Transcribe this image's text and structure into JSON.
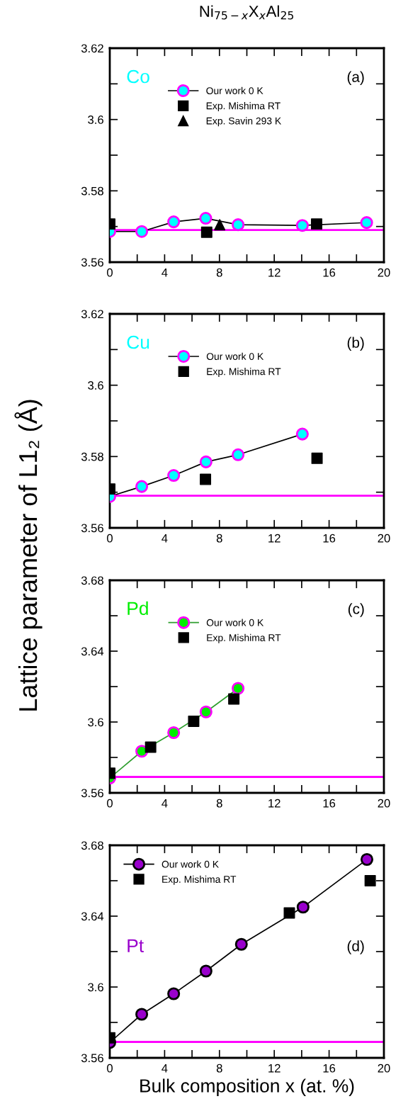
{
  "chart_data": [
    {
      "type": "line",
      "title": "Ni$_{75−x}$X$_{x}$Al$_{25}$",
      "ylabel": "Lattice parameter of L1₂ (Å)",
      "annotations": [
        "Co",
        "(a)"
      ],
      "legend": "top",
      "grid": false,
      "xlim": [
        0,
        20
      ],
      "xticks": [
        0,
        {
          "value": 2,
          "label": null
        },
        4,
        {
          "value": 6,
          "label": null
        },
        8,
        {
          "value": 10,
          "label": null
        },
        12,
        {
          "value": 14,
          "label": null
        },
        16,
        {
          "value": 18,
          "label": null
        },
        20
      ],
      "ylim": [
        3.56,
        3.62
      ],
      "yticks": [
        3.56,
        {
          "value": 3.57,
          "label": null
        },
        3.58,
        {
          "value": 3.59,
          "label": null
        },
        3.6,
        {
          "value": 3.61,
          "label": null
        },
        3.62
      ],
      "ref_lines": [
        {
          "axis": "y",
          "value": 3.569,
          "color": "#ff00ff"
        }
      ],
      "series": [
        {
          "name": "Our work 0 K",
          "marker": "circle",
          "color": "#00ffff",
          "x": [
            0,
            2.33,
            4.66,
            7.0,
            9.36,
            14.05,
            18.74
          ],
          "values": [
            3.5686,
            3.5686,
            3.5713,
            3.5723,
            3.5705,
            3.5703,
            3.5711
          ]
        },
        {
          "name": "Exp. Mishima RT",
          "type": "scatter",
          "marker": "square",
          "color": "#000000",
          "x": [
            0,
            7.07,
            15.09
          ],
          "values": [
            3.5707,
            3.5684,
            3.5707
          ]
        },
        {
          "name": "Exp. Savin 293 K",
          "type": "scatter",
          "marker": "triangle",
          "color": "#000000",
          "x": [
            8.02
          ],
          "values": [
            3.5705
          ]
        }
      ]
    },
    {
      "type": "line",
      "annotations": [
        "Cu",
        "(b)"
      ],
      "legend": "top",
      "grid": false,
      "xlim": [
        0,
        20
      ],
      "xticks": [
        0,
        {
          "value": 2,
          "label": null
        },
        4,
        {
          "value": 6,
          "label": null
        },
        8,
        {
          "value": 10,
          "label": null
        },
        12,
        {
          "value": 14,
          "label": null
        },
        16,
        {
          "value": 18,
          "label": null
        },
        20
      ],
      "ylim": [
        3.56,
        3.62
      ],
      "yticks": [
        3.56,
        {
          "value": 3.57,
          "label": null
        },
        3.58,
        {
          "value": 3.59,
          "label": null
        },
        3.6,
        {
          "value": 3.61,
          "label": null
        },
        3.62
      ],
      "ref_lines": [
        {
          "axis": "y",
          "value": 3.569,
          "color": "#ff00ff"
        }
      ],
      "series": [
        {
          "name": "Our work 0 K",
          "marker": "circle",
          "color": "#00ffff",
          "x": [
            0,
            2.33,
            4.66,
            7.02,
            9.36,
            14.05
          ],
          "values": [
            3.5688,
            3.5716,
            3.5747,
            3.5785,
            3.5805,
            3.5863
          ]
        },
        {
          "name": "Exp. Mishima RT",
          "type": "scatter",
          "marker": "square",
          "color": "#000000",
          "x": [
            0,
            6.98,
            15.12
          ],
          "values": [
            3.5709,
            3.5736,
            3.5795
          ]
        }
      ]
    },
    {
      "type": "line",
      "annotations": [
        "Pd",
        "(c)"
      ],
      "legend": "top",
      "grid": false,
      "xlim": [
        0,
        20
      ],
      "xticks": [
        0,
        {
          "value": 2,
          "label": null
        },
        4,
        {
          "value": 6,
          "label": null
        },
        8,
        {
          "value": 10,
          "label": null
        },
        12,
        {
          "value": 14,
          "label": null
        },
        16,
        {
          "value": 18,
          "label": null
        },
        20
      ],
      "ylim": [
        3.56,
        3.68
      ],
      "yticks": [
        3.56,
        {
          "value": 3.58,
          "label": null
        },
        3.6,
        {
          "value": 3.62,
          "label": null
        },
        3.64,
        {
          "value": 3.66,
          "label": null
        },
        3.68
      ],
      "ref_lines": [
        {
          "axis": "y",
          "value": 3.569,
          "color": "#ff00ff"
        }
      ],
      "series": [
        {
          "name": "Our work 0 K",
          "marker": "circle",
          "color": "#00ee00",
          "x": [
            0,
            2.33,
            4.66,
            7.02,
            9.36
          ],
          "values": [
            3.5684,
            3.5835,
            3.594,
            3.6057,
            3.619
          ]
        },
        {
          "name": "Exp. Mishima RT",
          "type": "scatter",
          "marker": "square",
          "color": "#000000",
          "x": [
            0,
            2.98,
            6.12,
            9.05
          ],
          "values": [
            3.5711,
            3.5858,
            3.6004,
            3.613
          ]
        }
      ]
    },
    {
      "type": "line",
      "xlabel": "Bulk composition x (at. %)",
      "annotations": [
        "Pt",
        "(d)"
      ],
      "legend": "top left",
      "grid": false,
      "xlim": [
        0,
        20
      ],
      "xticks": [
        0,
        {
          "value": 2,
          "label": null
        },
        4,
        {
          "value": 6,
          "label": null
        },
        8,
        {
          "value": 10,
          "label": null
        },
        12,
        {
          "value": 14,
          "label": null
        },
        16,
        {
          "value": 18,
          "label": null
        },
        20
      ],
      "ylim": [
        3.56,
        3.68
      ],
      "yticks": [
        3.56,
        {
          "value": 3.58,
          "label": null
        },
        3.6,
        {
          "value": 3.62,
          "label": null
        },
        3.64,
        {
          "value": 3.66,
          "label": null
        },
        3.68
      ],
      "ref_lines": [
        {
          "axis": "y",
          "value": 3.569,
          "color": "#ff00ff"
        }
      ],
      "series": [
        {
          "name": "Our work 0 K",
          "marker": "circle",
          "color": "#9900cc",
          "x": [
            0,
            2.33,
            4.66,
            7.02,
            9.6,
            14.1,
            18.76
          ],
          "values": [
            3.5687,
            3.5846,
            3.5962,
            3.609,
            3.6241,
            3.6451,
            3.672
          ]
        },
        {
          "name": "Exp. Mishima RT",
          "type": "scatter",
          "marker": "square",
          "color": "#000000",
          "x": [
            0,
            13.1,
            19.0
          ],
          "values": [
            3.5713,
            3.6418,
            3.66
          ]
        }
      ]
    }
  ]
}
